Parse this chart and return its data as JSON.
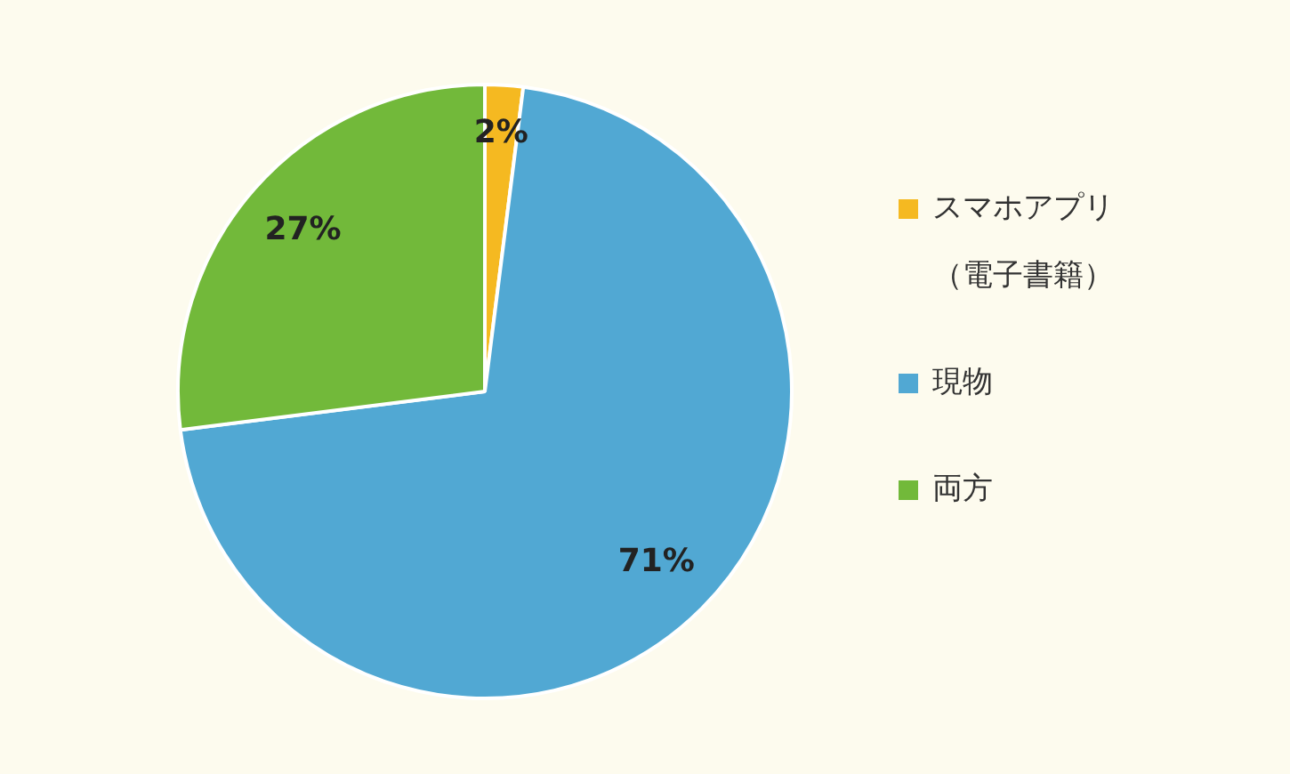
{
  "chart_data": {
    "type": "pie",
    "categories": [
      "スマホアプリ（電子書籍）",
      "現物",
      "両方"
    ],
    "values": [
      2,
      71,
      27
    ],
    "colors": [
      "#f5b921",
      "#51a8d3",
      "#72b93a"
    ],
    "value_labels": [
      "2%",
      "71%",
      "27%"
    ],
    "legend": "right"
  }
}
